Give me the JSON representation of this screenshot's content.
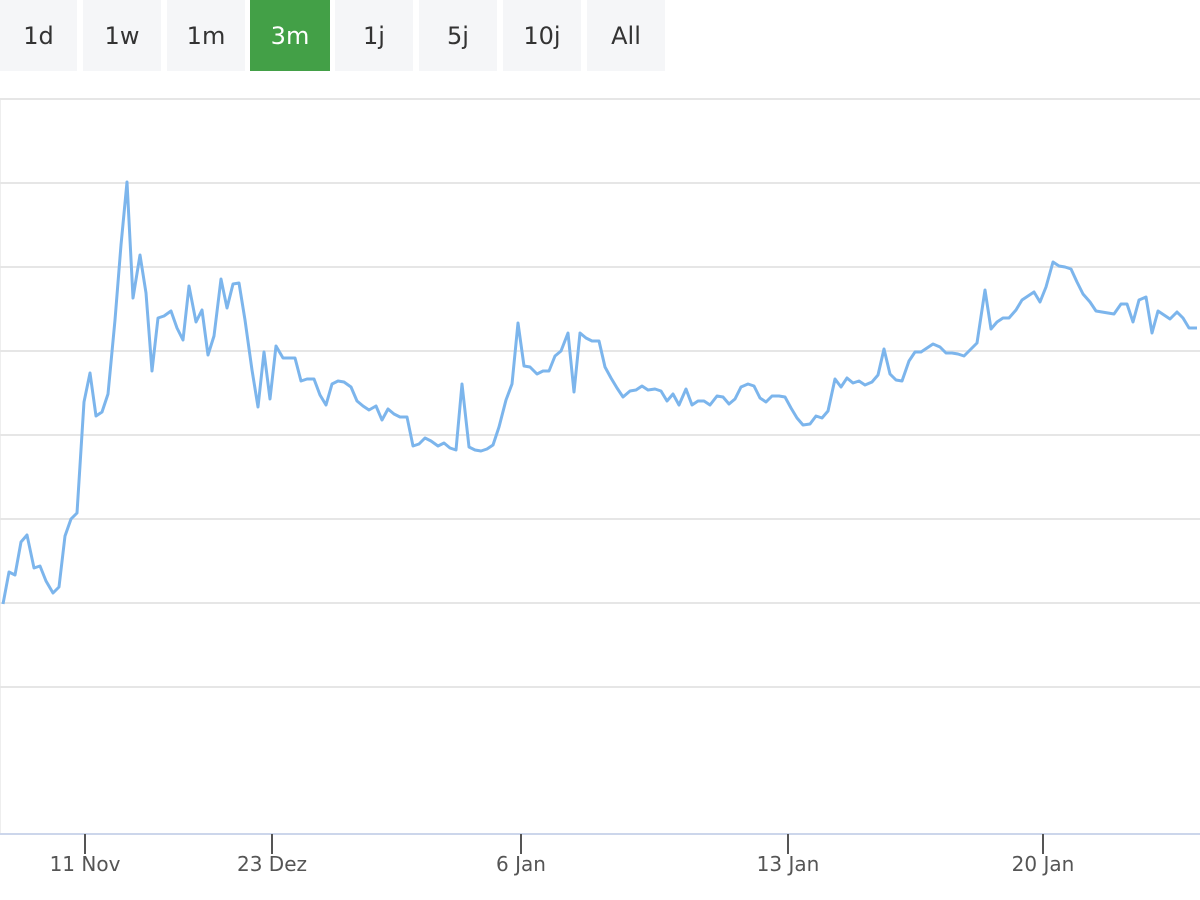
{
  "range_buttons": {
    "labels": [
      "1d",
      "1w",
      "1m",
      "3m",
      "1j",
      "5j",
      "10j",
      "All"
    ],
    "selected_index": 3
  },
  "chart_data": {
    "type": "line",
    "x": [
      3,
      9,
      15,
      21,
      27,
      34,
      40,
      46,
      53,
      59,
      65,
      71,
      77,
      84,
      90,
      96,
      102,
      108,
      115,
      121,
      127,
      133,
      140,
      146,
      152,
      158,
      164,
      171,
      177,
      183,
      189,
      196,
      202,
      208,
      214,
      221,
      227,
      233,
      239,
      245,
      252,
      258,
      264,
      270,
      276,
      283,
      289,
      295,
      301,
      307,
      314,
      320,
      326,
      332,
      338,
      344,
      351,
      357,
      363,
      369,
      376,
      382,
      388,
      394,
      400,
      407,
      413,
      419,
      425,
      431,
      438,
      444,
      450,
      456,
      462,
      469,
      475,
      481,
      487,
      493,
      499,
      506,
      512,
      518,
      524,
      530,
      537,
      543,
      549,
      555,
      561,
      568,
      574,
      580,
      586,
      592,
      599,
      605,
      611,
      617,
      623,
      630,
      636,
      642,
      648,
      655,
      661,
      667,
      673,
      679,
      686,
      692,
      698,
      704,
      710,
      717,
      723,
      729,
      735,
      741,
      748,
      754,
      760,
      766,
      772,
      779,
      785,
      791,
      797,
      803,
      810,
      816,
      822,
      828,
      835,
      841,
      847,
      853,
      859,
      865,
      872,
      878,
      884,
      890,
      896,
      902,
      909,
      915,
      921,
      927,
      933,
      940,
      946,
      952,
      958,
      964,
      971,
      977,
      985,
      991,
      997,
      1003,
      1009,
      1016,
      1022,
      1028,
      1034,
      1040,
      1046,
      1053,
      1059,
      1065,
      1071,
      1077,
      1083,
      1090,
      1096,
      1102,
      1108,
      1114,
      1121,
      1127,
      1133,
      1139,
      1146,
      1152,
      1158,
      1164,
      1170,
      1177,
      1183,
      1189,
      1197
    ],
    "series": [
      {
        "color": "#7cb5ec",
        "values": [
          230,
          262,
          259,
          292,
          299,
          266,
          268,
          253,
          241,
          247,
          298,
          315,
          321,
          432,
          461,
          418,
          422,
          440,
          514,
          589,
          652,
          536,
          579,
          541,
          463,
          516,
          518,
          523,
          506,
          494,
          548,
          512,
          524,
          479,
          498,
          555,
          526,
          550,
          551,
          514,
          464,
          427,
          482,
          435,
          488,
          476,
          476,
          476,
          453,
          455,
          455,
          439,
          429,
          450,
          453,
          452,
          447,
          433,
          428,
          424,
          428,
          414,
          425,
          420,
          417,
          417,
          388,
          390,
          396,
          393,
          388,
          391,
          386,
          384,
          450,
          387,
          384,
          383,
          385,
          389,
          407,
          434,
          450,
          511,
          468,
          467,
          460,
          463,
          463,
          478,
          483,
          501,
          442,
          501,
          496,
          493,
          493,
          467,
          456,
          446,
          437,
          443,
          444,
          448,
          444,
          445,
          443,
          433,
          440,
          429,
          445,
          429,
          433,
          433,
          429,
          438,
          437,
          430,
          435,
          447,
          450,
          448,
          436,
          432,
          438,
          438,
          437,
          426,
          416,
          409,
          410,
          418,
          416,
          423,
          455,
          447,
          456,
          451,
          453,
          449,
          452,
          459,
          485,
          460,
          454,
          453,
          473,
          482,
          482,
          486,
          490,
          487,
          481,
          481,
          480,
          478,
          485,
          491,
          544,
          505,
          512,
          516,
          516,
          524,
          534,
          538,
          542,
          532,
          547,
          572,
          568,
          567,
          565,
          552,
          540,
          532,
          523,
          522,
          521,
          520,
          530,
          530,
          512,
          534,
          537,
          501,
          523,
          519,
          515,
          522,
          516,
          506,
          506
        ]
      }
    ],
    "xlim": [
      0,
      1200
    ],
    "xticks": [
      {
        "value": 85,
        "label": "11 Nov"
      },
      {
        "value": 272,
        "label": "23 Dez"
      },
      {
        "value": 521,
        "label": "6 Jan"
      },
      {
        "value": 788,
        "label": "13 Jan"
      },
      {
        "value": 1043,
        "label": "20 Jan"
      }
    ],
    "ylim": [
      0,
      735
    ],
    "yticks": [
      147,
      231,
      315,
      399,
      483,
      567,
      651,
      735
    ],
    "show_ytick_labels": false,
    "grid": true
  }
}
